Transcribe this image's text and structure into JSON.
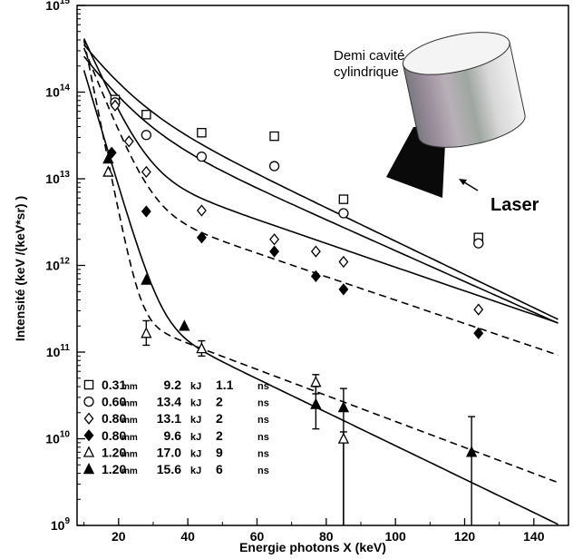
{
  "chart_data": {
    "type": "scatter",
    "title": "",
    "xlabel": "Energie photons X (keV)",
    "ylabel": "Intensité (keV /(keV*sr) )",
    "xlim": [
      8,
      150
    ],
    "ylim": [
      1000000000.0,
      1000000000000000.0
    ],
    "yscale": "log",
    "xticks": [
      20,
      40,
      60,
      80,
      100,
      120,
      140
    ],
    "ytick_base": "10",
    "ytick_exponents": [
      "9",
      "10",
      "11",
      "12",
      "13",
      "14",
      "15"
    ],
    "grid": false,
    "legend_position": "bottom-left",
    "annotations": {
      "cavity_label_line1": "Demi cavité",
      "cavity_label_line2": "cylindrique",
      "laser_label": "Laser"
    },
    "series": [
      {
        "legend": [
          "0.31",
          "mm",
          "9.2",
          "kJ",
          "1.1",
          "ns"
        ],
        "marker": "open-square",
        "x": [
          19,
          28,
          44,
          65,
          85,
          124
        ],
        "y": [
          82000000000000.0,
          55000000000000.0,
          34000000000000.0,
          31000000000000.0,
          5800000000000.0,
          2100000000000.0
        ]
      },
      {
        "legend": [
          "0.60",
          "mm",
          "13.4",
          "kJ",
          "2",
          "ns"
        ],
        "marker": "open-circle",
        "x": [
          19,
          28,
          44,
          65,
          85,
          124
        ],
        "y": [
          76000000000000.0,
          32000000000000.0,
          18000000000000.0,
          14000000000000.0,
          4000000000000.0,
          1800000000000.0
        ]
      },
      {
        "legend": [
          "0.80",
          "mm",
          "13.1",
          "kJ",
          "2",
          "ns"
        ],
        "marker": "open-diamond",
        "x": [
          19,
          23,
          28,
          44,
          65,
          77,
          85,
          124
        ],
        "y": [
          70000000000000.0,
          27000000000000.0,
          12000000000000.0,
          4300000000000.0,
          2000000000000.0,
          1450000000000.0,
          1100000000000.0,
          310000000000.0
        ]
      },
      {
        "legend": [
          "0.80",
          "mm",
          "9.6",
          "kJ",
          "2",
          "ns"
        ],
        "marker": "filled-diamond",
        "x": [
          18,
          28,
          44,
          65,
          77,
          85,
          124
        ],
        "y": [
          20000000000000.0,
          4200000000000.0,
          2100000000000.0,
          1450000000000.0,
          750000000000.0,
          530000000000.0,
          165000000000.0
        ],
        "fit_style": "dashed"
      },
      {
        "legend": [
          "1.20",
          "mm",
          "17.0",
          "kJ",
          "9",
          "ns"
        ],
        "marker": "open-triangle",
        "x": [
          17,
          28,
          44,
          77,
          85
        ],
        "y": [
          12000000000000.0,
          165000000000.0,
          110000000000.0,
          45000000000.0,
          10000000000.0
        ],
        "err_lo": [
          null,
          120000000000.0,
          90000000000.0,
          33000000000.0,
          1000000000.0
        ],
        "err_hi": [
          null,
          230000000000.0,
          135000000000.0,
          55000000000.0,
          12000000000.0
        ],
        "fit_style": "dashed"
      },
      {
        "legend": [
          "1.20",
          "mm",
          "15.6",
          "kJ",
          "6",
          "ns"
        ],
        "marker": "filled-triangle",
        "x": [
          17,
          28,
          39,
          77,
          85,
          122
        ],
        "y": [
          17000000000000.0,
          680000000000.0,
          200000000000.0,
          25000000000.0,
          23000000000.0,
          7000000000.0
        ],
        "err_lo": [
          null,
          null,
          null,
          13000000000.0,
          1000000000.0,
          1000000000.0
        ],
        "err_hi": [
          null,
          null,
          null,
          40000000000.0,
          38000000000.0,
          18000000000.0
        ]
      }
    ]
  }
}
